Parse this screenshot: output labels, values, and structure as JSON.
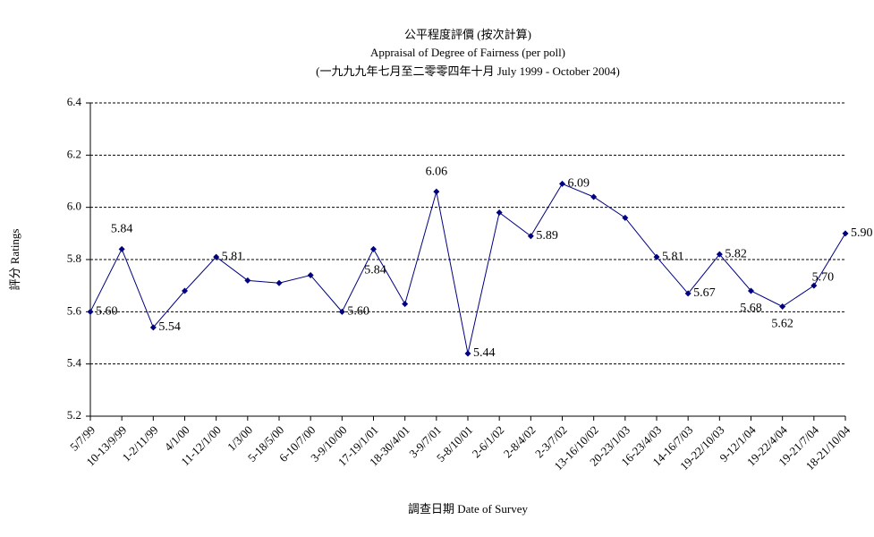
{
  "chart_data": {
    "type": "line",
    "title": "公平程度評價 (按次計算)",
    "subtitle": "Appraisal of Degree of Fairness (per poll)",
    "subtitle2": "(一九九九年七月至二零零四年十月 July 1999 - October 2004)",
    "x_label": "調查日期 Date of Survey",
    "y_label": "評分 Ratings",
    "categories": [
      "5/7/99",
      "10-13/9/99",
      "1-2/11/99",
      "4/1/00",
      "11-12/1/00",
      "1/3/00",
      "5-18/5/00",
      "6-10/7/00",
      "3-9/10/00",
      "17-19/1/01",
      "18-30/4/01",
      "3-9/7/01",
      "5-8/10/01",
      "2-6/1/02",
      "2-8/4/02",
      "2-3/7/02",
      "13-16/10/02",
      "20-23/1/03",
      "16-23/4/03",
      "14-16/7/03",
      "19-22/10/03",
      "9-12/1/04",
      "19-22/4/04",
      "19-21/7/04",
      "18-21/10/04"
    ],
    "series": [
      {
        "name": "Ratings",
        "color": "#000080",
        "values": [
          5.6,
          5.84,
          5.54,
          5.68,
          5.81,
          5.72,
          5.71,
          5.74,
          5.6,
          5.84,
          5.63,
          6.06,
          5.44,
          5.98,
          5.89,
          6.09,
          6.04,
          5.96,
          5.81,
          5.67,
          5.82,
          5.68,
          5.62,
          5.7,
          5.9
        ],
        "value_labels": [
          "5.60",
          "5.84",
          "5.54",
          null,
          "5.81",
          null,
          null,
          null,
          "5.60",
          "5.84",
          null,
          "6.06",
          "5.44",
          null,
          "5.89",
          "6.09",
          null,
          null,
          "5.81",
          "5.67",
          "5.82",
          "5.68",
          "5.62",
          "5.70",
          "5.90"
        ]
      }
    ],
    "ylim": [
      5.2,
      6.4
    ],
    "yticks": [
      {
        "value": 5.2,
        "label": "5.2"
      },
      {
        "value": 5.4,
        "label": "5.4"
      },
      {
        "value": 5.6,
        "label": "5.6"
      },
      {
        "value": 5.8,
        "label": "5.8"
      },
      {
        "value": 6.0,
        "label": "6.0"
      },
      {
        "value": 6.2,
        "label": "6.2"
      },
      {
        "value": 6.4,
        "label": "6.4"
      }
    ],
    "grid": true
  }
}
